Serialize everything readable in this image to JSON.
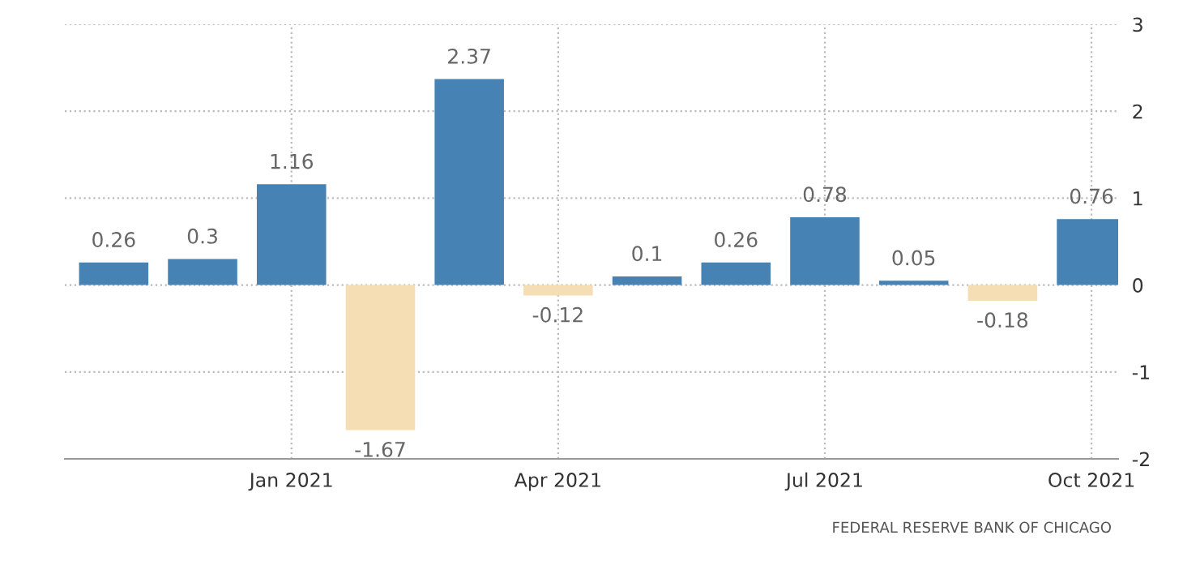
{
  "chart_data": {
    "type": "bar",
    "categories": [
      null,
      null,
      "Jan 2021",
      null,
      null,
      "Apr 2021",
      null,
      null,
      "Jul 2021",
      null,
      null,
      "Oct 2021"
    ],
    "values": [
      0.26,
      0.3,
      1.16,
      -1.67,
      2.37,
      -0.12,
      0.1,
      0.26,
      0.78,
      0.05,
      -0.18,
      0.76
    ],
    "colors": [
      "#4682b4",
      "#4682b4",
      "#4682b4",
      "#f5deb3",
      "#4682b4",
      "#f5deb3",
      "#4682b4",
      "#4682b4",
      "#4682b4",
      "#4682b4",
      "#f5deb3",
      "#4682b4"
    ],
    "ylim": [
      -2,
      3
    ],
    "yticks": [
      -2,
      -1,
      0,
      1,
      2,
      3
    ],
    "grid": true,
    "data_labels": true,
    "annotations": [
      "FEDERAL RESERVE BANK OF CHICAGO"
    ]
  }
}
